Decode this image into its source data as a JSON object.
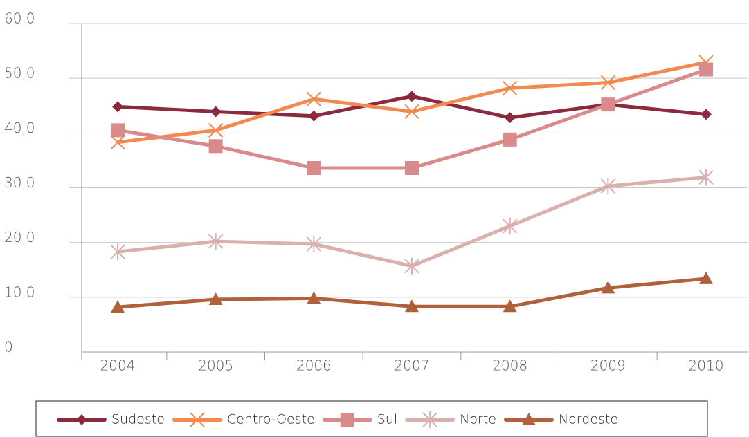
{
  "chart_data": {
    "type": "line",
    "categories": [
      "2004",
      "2005",
      "2006",
      "2007",
      "2008",
      "2009",
      "2010"
    ],
    "ylim": [
      0,
      60
    ],
    "yticks": [
      0,
      {
        "value": 10,
        "label": "10,0"
      },
      {
        "value": 20,
        "label": "20,0"
      },
      {
        "value": 30,
        "label": "30,0"
      },
      {
        "value": 40,
        "label": "40,0"
      },
      {
        "value": 50,
        "label": "50,0"
      },
      {
        "value": 60,
        "label": "60,0"
      }
    ],
    "grid": true,
    "legend": "bottom",
    "series": [
      {
        "name": "Sudeste",
        "color": "#8b2a3e",
        "marker": "diamond",
        "values": [
          44.8,
          43.9,
          43.1,
          46.7,
          42.8,
          45.2,
          43.4
        ]
      },
      {
        "name": "Centro-Oeste",
        "color": "#f28a50",
        "marker": "x",
        "values": [
          38.3,
          40.5,
          46.2,
          43.9,
          48.2,
          49.2,
          52.9
        ]
      },
      {
        "name": "Sul",
        "color": "#d98a8a",
        "marker": "square",
        "values": [
          40.5,
          37.6,
          33.6,
          33.6,
          38.8,
          45.2,
          51.6
        ]
      },
      {
        "name": "Norte",
        "color": "#d9b0ae",
        "marker": "asterisk",
        "values": [
          18.3,
          20.2,
          19.7,
          15.7,
          23.0,
          30.3,
          31.9
        ]
      },
      {
        "name": "Nordeste",
        "color": "#b0603a",
        "marker": "triangle",
        "values": [
          8.2,
          9.6,
          9.8,
          8.3,
          8.3,
          11.7,
          13.4
        ]
      }
    ]
  }
}
